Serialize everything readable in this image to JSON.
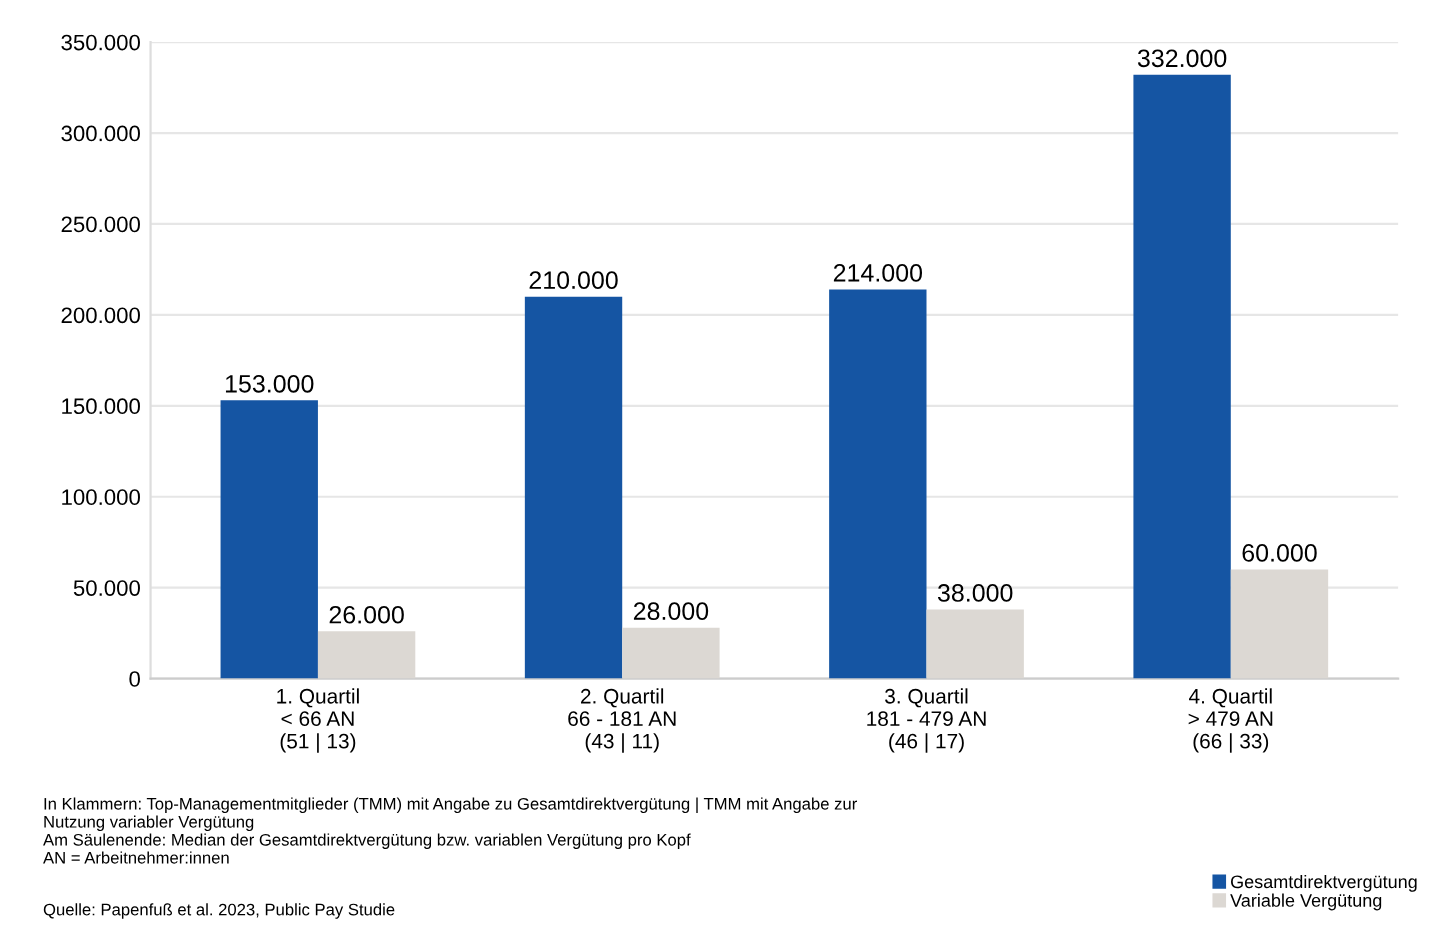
{
  "chart_data": {
    "type": "bar",
    "categories": [
      "1. Quartil\n< 66 AN\n(51 | 13)",
      "2. Quartil\n66 - 181 AN\n(43 | 11)",
      "3. Quartil\n181 - 479 AN\n(46 | 17)",
      "4. Quartil\n> 479 AN\n(66 | 33)"
    ],
    "series": [
      {
        "name": "Gesamtdirektvergütung",
        "color": "#1555a3",
        "values": [
          153000,
          210000,
          214000,
          332000
        ],
        "value_labels": [
          "153.000",
          "210.000",
          "214.000",
          "332.000"
        ]
      },
      {
        "name": "Variable Vergütung",
        "color": "#dcd8d3",
        "values": [
          26000,
          28000,
          38000,
          60000
        ],
        "value_labels": [
          "26.000",
          "28.000",
          "38.000",
          "60.000"
        ]
      }
    ],
    "ylim": [
      0,
      350000
    ],
    "yticks": [
      {
        "value": 0,
        "label": "0"
      },
      {
        "value": 50000,
        "label": "50.000"
      },
      {
        "value": 100000,
        "label": "100.000"
      },
      {
        "value": 150000,
        "label": "150.000"
      },
      {
        "value": 200000,
        "label": "200.000"
      },
      {
        "value": 250000,
        "label": "250.000"
      },
      {
        "value": 300000,
        "label": "300.000"
      },
      {
        "value": 350000,
        "label": "350.000"
      }
    ],
    "grid": "y",
    "legend": "bottom right",
    "annotations": [
      "In Klammern: Top-Managementmitglieder (TMM) mit Angabe zu Gesamtdirektvergütung | TMM mit Angabe zur\nNutzung variabler Vergütung\nAm Säulenende: Median der Gesamtdirektvergütung bzw. variablen Vergütung pro Kopf\nAN = Arbeitnehmer:innen",
      "Quelle: Papenfuß et al. 2023, Public Pay Studie"
    ]
  }
}
